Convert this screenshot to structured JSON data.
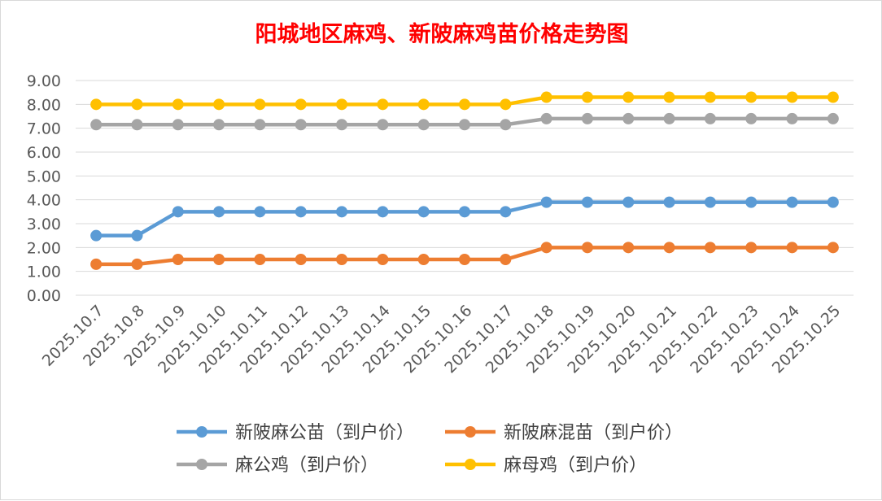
{
  "chart_data": {
    "type": "line",
    "title": "阳城地区麻鸡、新陂麻鸡苗价格走势图",
    "xlabel": "",
    "ylabel": "",
    "ylim": [
      0,
      9
    ],
    "ytick_step": 1,
    "ytick_labels": [
      "0.00",
      "1.00",
      "2.00",
      "3.00",
      "4.00",
      "5.00",
      "6.00",
      "7.00",
      "8.00",
      "9.00"
    ],
    "grid": true,
    "legend_position": "bottom",
    "categories": [
      "2025.10.7",
      "2025.10.8",
      "2025.10.9",
      "2025.10.10",
      "2025.10.11",
      "2025.10.12",
      "2025.10.13",
      "2025.10.14",
      "2025.10.15",
      "2025.10.16",
      "2025.10.17",
      "2025.10.18",
      "2025.10.19",
      "2025.10.20",
      "2025.10.21",
      "2025.10.22",
      "2025.10.23",
      "2025.10.24",
      "2025.10.25"
    ],
    "series": [
      {
        "name": "新陂麻公苗（到户价）",
        "color": "#5b9bd5",
        "values": [
          2.5,
          2.5,
          3.5,
          3.5,
          3.5,
          3.5,
          3.5,
          3.5,
          3.5,
          3.5,
          3.5,
          3.9,
          3.9,
          3.9,
          3.9,
          3.9,
          3.9,
          3.9,
          3.9
        ]
      },
      {
        "name": "新陂麻混苗（到户价）",
        "color": "#ed7d31",
        "values": [
          1.3,
          1.3,
          1.5,
          1.5,
          1.5,
          1.5,
          1.5,
          1.5,
          1.5,
          1.5,
          1.5,
          2.0,
          2.0,
          2.0,
          2.0,
          2.0,
          2.0,
          2.0,
          2.0
        ]
      },
      {
        "name": "麻公鸡（到户价）",
        "color": "#a5a5a5",
        "values": [
          7.15,
          7.15,
          7.15,
          7.15,
          7.15,
          7.15,
          7.15,
          7.15,
          7.15,
          7.15,
          7.15,
          7.4,
          7.4,
          7.4,
          7.4,
          7.4,
          7.4,
          7.4,
          7.4
        ]
      },
      {
        "name": "麻母鸡（到户价）",
        "color": "#ffc000",
        "values": [
          8.0,
          8.0,
          8.0,
          8.0,
          8.0,
          8.0,
          8.0,
          8.0,
          8.0,
          8.0,
          8.0,
          8.3,
          8.3,
          8.3,
          8.3,
          8.3,
          8.3,
          8.3,
          8.3
        ]
      }
    ]
  }
}
